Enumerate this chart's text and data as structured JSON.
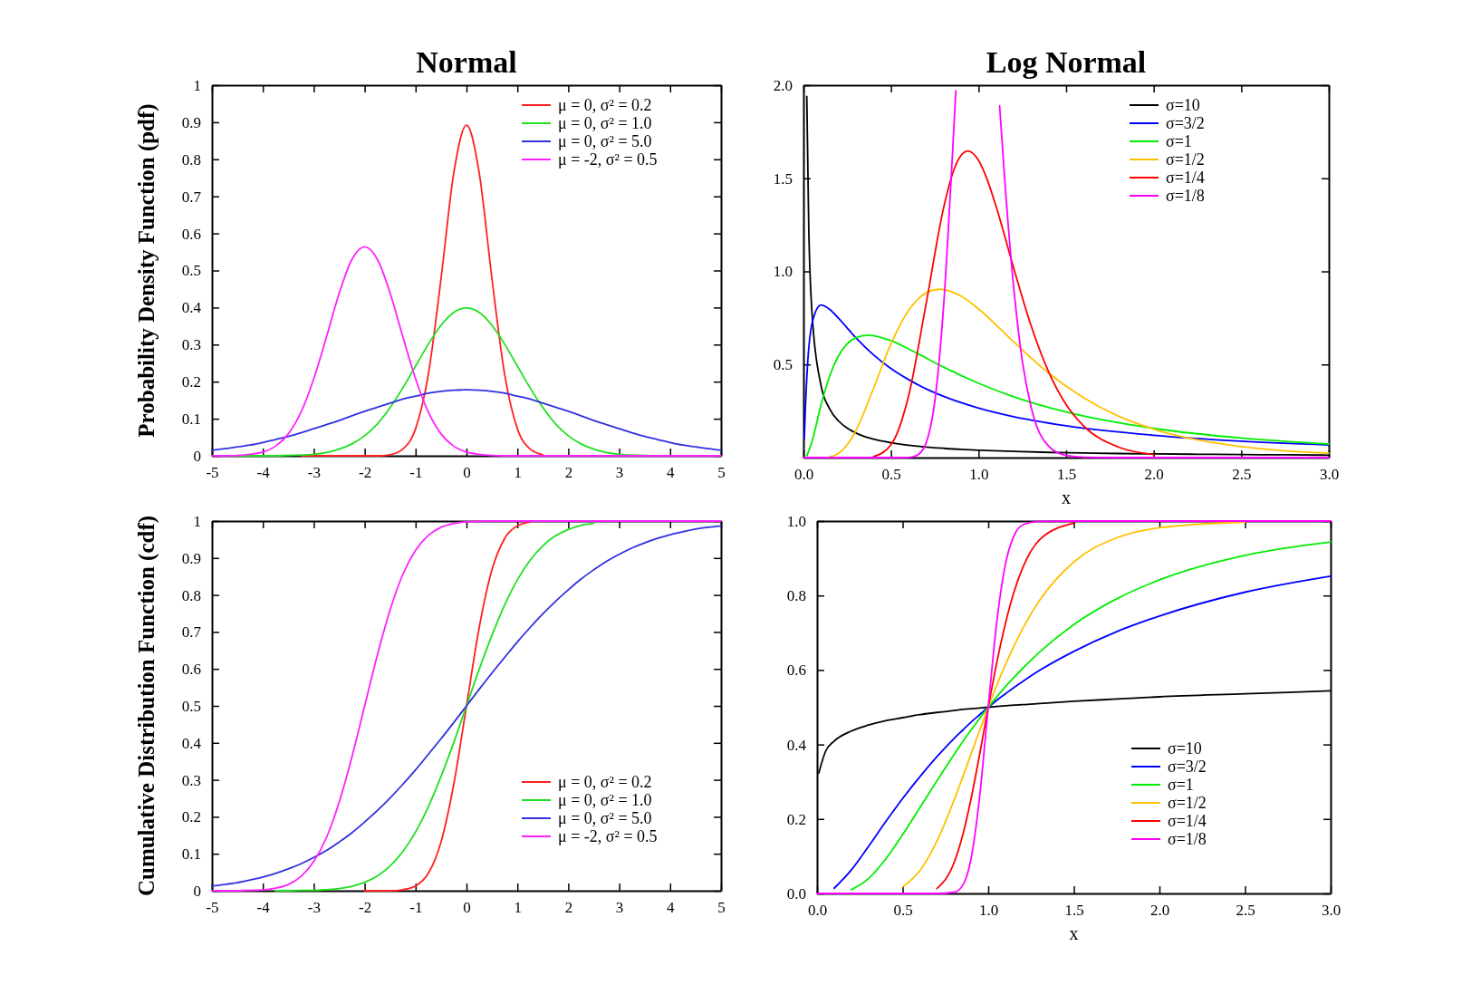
{
  "chart_data": [
    {
      "type": "line",
      "title": "Normal",
      "ylabel": "Probability Density Function (pdf)",
      "legend": "top right",
      "xlim": [
        -5,
        5
      ],
      "ylim": [
        0,
        1
      ],
      "xticks": [
        -5,
        -4,
        -3,
        -2,
        -1,
        0,
        1,
        2,
        3,
        4,
        5
      ],
      "yticks": [
        0,
        0.1,
        0.2,
        0.3,
        0.4,
        0.5,
        0.6,
        0.7,
        0.8,
        0.9,
        1
      ],
      "x": [
        -5,
        -4.75,
        -4.5,
        -4.25,
        -4,
        -3.75,
        -3.5,
        -3.25,
        -3,
        -2.75,
        -2.5,
        -2.25,
        -2,
        -1.75,
        -1.5,
        -1.25,
        -1,
        -0.75,
        -0.5,
        -0.25,
        0,
        0.25,
        0.5,
        0.75,
        1,
        1.25,
        1.5,
        1.75,
        2,
        2.25,
        2.5,
        2.75,
        3,
        3.25,
        3.5,
        3.75,
        4,
        4.25,
        4.5,
        4.75,
        5
      ],
      "series": [
        {
          "name": "μ =  0, σ² = 0.2",
          "color": "#ff2020",
          "values": [
            null,
            null,
            null,
            null,
            null,
            null,
            null,
            0,
            0,
            0,
            0,
            0,
            0,
            0,
            0.003,
            0.018,
            0.073,
            0.219,
            0.478,
            0.763,
            0.892,
            0.763,
            0.478,
            0.219,
            0.073,
            0.018,
            0.003,
            null,
            null,
            null,
            null,
            null,
            null,
            null,
            null,
            null,
            null,
            null,
            null,
            null,
            null
          ]
        },
        {
          "name": "μ =  0, σ² = 1.0",
          "color": "#20e020",
          "values": [
            0,
            0,
            0,
            0,
            0,
            0,
            0.001,
            0.002,
            0.004,
            0.009,
            0.018,
            0.032,
            0.054,
            0.086,
            0.13,
            0.183,
            0.242,
            0.301,
            0.352,
            0.387,
            0.399,
            0.387,
            0.352,
            0.301,
            0.242,
            0.183,
            0.13,
            0.086,
            0.054,
            0.032,
            0.018,
            0.009,
            0.004,
            0.002,
            0.001,
            0,
            null,
            null,
            null,
            null,
            null
          ]
        },
        {
          "name": "μ =  0, σ² = 5.0",
          "color": "#3030e0",
          "values": [
            0.015,
            0.019,
            0.024,
            0.029,
            0.036,
            0.044,
            0.052,
            0.062,
            0.073,
            0.084,
            0.095,
            0.108,
            0.12,
            0.131,
            0.142,
            0.153,
            0.161,
            0.169,
            0.174,
            0.177,
            0.178,
            0.177,
            0.174,
            0.169,
            0.161,
            0.153,
            0.142,
            0.131,
            0.12,
            0.108,
            0.095,
            0.084,
            0.073,
            0.062,
            0.052,
            0.044,
            0.036,
            0.029,
            0.024,
            0.019,
            0.015
          ]
        },
        {
          "name": "μ = -2, σ² = 0.5",
          "color": "#ff20ff",
          "values": [
            0,
            0,
            0.001,
            0.004,
            0.01,
            0.026,
            0.059,
            0.118,
            0.208,
            0.321,
            0.439,
            0.53,
            0.564,
            0.53,
            0.439,
            0.321,
            0.208,
            0.118,
            0.059,
            0.026,
            0.01,
            0.004,
            0.001,
            0,
            0,
            0,
            0,
            0,
            0,
            0,
            0,
            0,
            0,
            0,
            0,
            0,
            0,
            0,
            0,
            0,
            0
          ]
        }
      ]
    },
    {
      "type": "line",
      "title": "Log Normal",
      "xlabel": "x",
      "legend": "top right",
      "xlim": [
        0,
        3
      ],
      "ylim": [
        0,
        2
      ],
      "xticks": [
        {
          "value": 0,
          "label": "0.0"
        },
        0.5,
        {
          "value": 1,
          "label": "1.0"
        },
        1.5,
        {
          "value": 2,
          "label": "2.0"
        },
        2.5,
        {
          "value": 3,
          "label": "3.0"
        }
      ],
      "yticks": [
        0.5,
        {
          "value": 1,
          "label": "1.0"
        },
        1.5,
        {
          "value": 2,
          "label": "2.0"
        }
      ],
      "series": [
        {
          "name": "σ=10",
          "color": "#000000",
          "x": [
            0.019,
            0.03,
            0.05,
            0.1,
            0.15,
            0.2,
            0.25,
            0.3,
            0.35,
            0.4,
            0.5,
            0.6,
            0.7,
            0.8,
            0.9,
            1,
            1.2,
            1.4,
            1.6,
            1.8,
            2,
            2.25,
            2.5,
            2.75,
            3
          ],
          "values": [
            1.94,
            1.25,
            0.763,
            0.389,
            0.261,
            0.197,
            0.158,
            0.132,
            0.113,
            0.099,
            0.08,
            0.066,
            0.057,
            0.05,
            0.044,
            0.04,
            0.033,
            0.028,
            0.025,
            0.022,
            0.02,
            0.018,
            0.016,
            0.015,
            0.013
          ]
        },
        {
          "name": "σ=3/2",
          "color": "#0000ff",
          "x": [
            0.005,
            0.01,
            0.02,
            0.05,
            0.1,
            0.15,
            0.2,
            0.3,
            0.4,
            0.5,
            0.6,
            0.7,
            0.8,
            1,
            1.2,
            1.5,
            2,
            2.5,
            3
          ],
          "values": [
            0.104,
            0.24,
            0.444,
            0.724,
            0.819,
            0.796,
            0.749,
            0.643,
            0.552,
            0.478,
            0.419,
            0.369,
            0.329,
            0.266,
            0.22,
            0.171,
            0.12,
            0.088,
            0.068
          ]
        },
        {
          "name": "σ=1",
          "color": "#00ee00",
          "x": [
            0.02,
            0.05,
            0.1,
            0.15,
            0.2,
            0.3,
            0.37,
            0.5,
            0.6,
            0.7,
            0.8,
            1,
            1.2,
            1.5,
            2,
            2.5,
            3
          ],
          "values": [
            0.01,
            0.09,
            0.282,
            0.439,
            0.546,
            0.644,
            0.658,
            0.628,
            0.584,
            0.535,
            0.486,
            0.399,
            0.327,
            0.245,
            0.157,
            0.105,
            0.073
          ]
        },
        {
          "name": "σ=1/2",
          "color": "#ffc000",
          "x": [
            0.15,
            0.2,
            0.25,
            0.3,
            0.4,
            0.5,
            0.6,
            0.7,
            0.78,
            0.9,
            1,
            1.2,
            1.4,
            1.6,
            1.8,
            2,
            2.5,
            3
          ],
          "values": [
            0.004,
            0.022,
            0.069,
            0.146,
            0.371,
            0.611,
            0.789,
            0.884,
            0.904,
            0.867,
            0.798,
            0.622,
            0.454,
            0.321,
            0.222,
            0.153,
            0.059,
            0.024
          ]
        },
        {
          "name": "σ=1/4",
          "color": "#ff0000",
          "x": [
            0.4,
            0.5,
            0.6,
            0.7,
            0.8,
            0.85,
            0.9,
            0.94,
            1,
            1.05,
            1.1,
            1.2,
            1.3,
            1.4,
            1.5,
            1.6,
            1.8,
            2
          ],
          "values": [
            0.005,
            0.069,
            0.33,
            0.824,
            1.34,
            1.521,
            1.623,
            1.647,
            1.596,
            1.491,
            1.349,
            1.02,
            0.708,
            0.461,
            0.285,
            0.17,
            0.056,
            0.017
          ]
        },
        {
          "name": "σ=1/8",
          "color": "#ff00ff",
          "x": [
            0,
            0.5,
            0.6,
            0.65,
            0.7,
            0.75,
            0.8,
            0.85,
            0.87,
            1,
            1.12,
            1.15,
            1.2,
            1.25,
            1.3,
            1.4,
            1.5,
            1.6,
            1.8,
            3
          ],
          "values": [
            0,
            0,
            0.001,
            0.013,
            0.078,
            0.301,
            0.811,
            1.613,
            1.97,
            null,
            1.89,
            1.485,
            0.918,
            0.518,
            0.271,
            0.061,
            0.011,
            0.002,
            0,
            0
          ]
        }
      ]
    },
    {
      "type": "line",
      "ylabel": "Cumulative Distribution Function (cdf)",
      "legend": "bottom right",
      "xlim": [
        -5,
        5
      ],
      "ylim": [
        0,
        1
      ],
      "xticks": [
        -5,
        -4,
        -3,
        -2,
        -1,
        0,
        1,
        2,
        3,
        4,
        5
      ],
      "yticks": [
        0,
        0.1,
        0.2,
        0.3,
        0.4,
        0.5,
        0.6,
        0.7,
        0.8,
        0.9,
        1
      ],
      "x": [
        -5,
        -4.75,
        -4.5,
        -4.25,
        -4,
        -3.75,
        -3.5,
        -3.25,
        -3,
        -2.75,
        -2.5,
        -2.25,
        -2,
        -1.75,
        -1.5,
        -1.25,
        -1,
        -0.75,
        -0.5,
        -0.25,
        0,
        0.25,
        0.5,
        0.75,
        1,
        1.25,
        1.5,
        1.75,
        2,
        2.25,
        2.5,
        2.75,
        3,
        3.25,
        3.5,
        3.75,
        4,
        4.25,
        4.5,
        4.75,
        5
      ],
      "series": [
        {
          "name": "μ =  0, σ² = 0.2",
          "color": "#ff2020",
          "values": [
            null,
            null,
            null,
            null,
            null,
            null,
            null,
            null,
            null,
            null,
            null,
            null,
            0,
            0,
            0,
            0.003,
            0.013,
            0.047,
            0.132,
            0.288,
            0.5,
            0.712,
            0.868,
            0.953,
            0.987,
            0.997,
            null,
            null,
            null,
            null,
            null,
            null,
            null,
            null,
            null,
            null,
            null,
            null,
            null,
            null,
            null
          ]
        },
        {
          "name": "μ =  0, σ² = 1.0",
          "color": "#20e020",
          "values": [
            null,
            null,
            null,
            null,
            null,
            0,
            0,
            0.001,
            0.001,
            0.003,
            0.006,
            0.012,
            0.023,
            0.04,
            0.067,
            0.106,
            0.159,
            0.227,
            0.309,
            0.401,
            0.5,
            0.599,
            0.691,
            0.773,
            0.841,
            0.894,
            0.933,
            0.96,
            0.977,
            0.988,
            0.994,
            null,
            null,
            null,
            null,
            null,
            null,
            null,
            null,
            null,
            null
          ]
        },
        {
          "name": "μ =  0, σ² = 5.0",
          "color": "#3030e0",
          "values": [
            0.013,
            0.017,
            0.022,
            0.029,
            0.037,
            0.047,
            0.059,
            0.073,
            0.09,
            0.109,
            0.132,
            0.157,
            0.186,
            0.217,
            0.251,
            0.288,
            0.327,
            0.369,
            0.411,
            0.455,
            0.5,
            0.545,
            0.589,
            0.631,
            0.673,
            0.712,
            0.749,
            0.783,
            0.814,
            0.843,
            0.868,
            0.891,
            0.91,
            0.927,
            0.941,
            0.953,
            0.963,
            0.971,
            0.978,
            0.983,
            0.987
          ]
        },
        {
          "name": "μ = -2, σ² = 0.5",
          "color": "#ff20ff",
          "values": [
            0,
            0,
            0,
            0.001,
            0.002,
            0.007,
            0.017,
            0.039,
            0.079,
            0.144,
            0.24,
            0.362,
            0.5,
            0.638,
            0.76,
            0.856,
            0.921,
            0.961,
            0.983,
            0.993,
            0.998,
            0.999,
            1,
            1,
            1,
            1,
            1,
            1,
            1,
            1,
            1,
            1,
            1,
            1,
            1,
            1,
            1,
            1,
            1,
            1,
            1
          ]
        }
      ]
    },
    {
      "type": "line",
      "xlabel": "x",
      "legend": "bottom right",
      "xlim": [
        0,
        3
      ],
      "ylim": [
        0,
        1
      ],
      "xticks": [
        {
          "value": 0,
          "label": "0.0"
        },
        0.5,
        {
          "value": 1,
          "label": "1.0"
        },
        1.5,
        {
          "value": 2,
          "label": "2.0"
        },
        2.5,
        {
          "value": 3,
          "label": "3.0"
        }
      ],
      "yticks": [
        {
          "value": 0,
          "label": "0.0"
        },
        0.2,
        0.4,
        0.6,
        0.8,
        {
          "value": 1,
          "label": "1.0"
        }
      ],
      "x": [
        0,
        0.01,
        0.05,
        0.1,
        0.2,
        0.3,
        0.4,
        0.5,
        0.6,
        0.7,
        0.8,
        0.85,
        0.9,
        0.95,
        1,
        1.05,
        1.1,
        1.15,
        1.2,
        1.3,
        1.5,
        1.75,
        2,
        2.5,
        3
      ],
      "series": [
        {
          "name": "σ=10",
          "color": "#000000",
          "values": [
            null,
            0.323,
            0.382,
            0.409,
            0.436,
            0.452,
            0.464,
            0.472,
            0.48,
            0.486,
            0.491,
            0.494,
            0.496,
            0.498,
            0.5,
            0.502,
            0.504,
            0.506,
            0.507,
            0.51,
            0.516,
            0.522,
            0.528,
            0.536,
            0.544
          ]
        },
        {
          "name": "σ=3/2",
          "color": "#0000ff",
          "values": [
            null,
            null,
            null,
            0.014,
            0.063,
            0.126,
            0.192,
            0.255,
            0.313,
            0.367,
            0.416,
            0.438,
            0.46,
            0.48,
            0.5,
            0.519,
            0.536,
            0.553,
            0.569,
            0.599,
            0.65,
            0.703,
            0.745,
            0.809,
            0.852
          ]
        },
        {
          "name": "σ=1",
          "color": "#00ee00",
          "values": [
            null,
            null,
            null,
            null,
            0.01,
            0.04,
            0.092,
            0.158,
            0.23,
            0.302,
            0.373,
            0.407,
            0.439,
            0.47,
            0.5,
            0.528,
            0.555,
            0.58,
            0.604,
            0.648,
            0.722,
            0.791,
            0.842,
            0.908,
            0.944
          ]
        },
        {
          "name": "σ=1/2",
          "color": "#ffc000",
          "values": [
            null,
            null,
            null,
            null,
            null,
            null,
            null,
            0.018,
            0.061,
            0.14,
            0.25,
            0.311,
            0.375,
            0.438,
            0.5,
            0.559,
            0.614,
            0.664,
            0.71,
            0.787,
            0.89,
            0.955,
            0.982,
            0.997,
            null
          ]
        },
        {
          "name": "σ=1/4",
          "color": "#ff0000",
          "values": [
            null,
            null,
            null,
            null,
            null,
            null,
            null,
            null,
            null,
            0.013,
            0.082,
            0.155,
            0.255,
            0.374,
            0.5,
            0.62,
            0.724,
            0.809,
            0.873,
            0.95,
            0.994,
            null,
            null,
            null,
            null
          ]
        },
        {
          "name": "σ=1/8",
          "color": "#ff00ff",
          "values": [
            0,
            0,
            0,
            0,
            0,
            0,
            0,
            0,
            0,
            0,
            0.003,
            0.021,
            0.094,
            0.261,
            0.5,
            0.729,
            0.883,
            0.96,
            0.989,
            0.999,
            1,
            1,
            1,
            1,
            1
          ]
        }
      ]
    }
  ]
}
